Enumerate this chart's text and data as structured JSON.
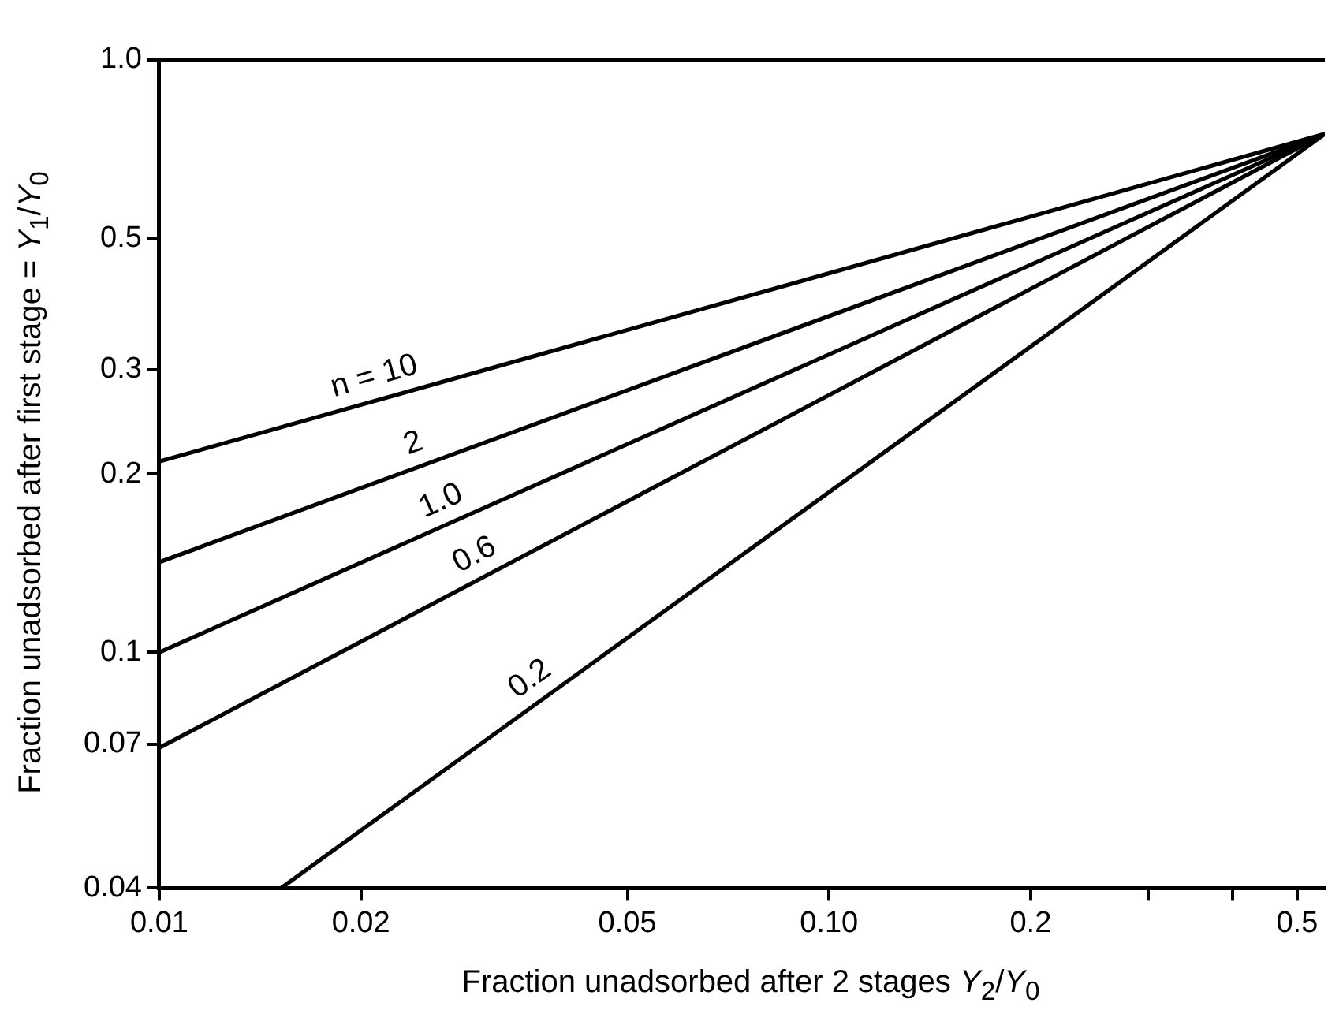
{
  "chart_data": {
    "type": "line",
    "xlabel": "Fraction unadsorbed after 2 stages Y$_{2}$/Y$_{0}$",
    "ylabel": "Fraction unadsorbed after first stage = Y$_{1}$/Y$_{0}$",
    "log": "xy",
    "grid": false,
    "legend": false,
    "marker": "none",
    "line_style": "solid",
    "xlim": [
      0.01,
      0.55
    ],
    "ylim": [
      0.04,
      1.0
    ],
    "xticks": [
      0.01,
      0.02,
      0.05,
      {
        "value": 0.1,
        "label": "0.10"
      },
      0.2,
      {
        "value": 0.3,
        "label": null
      },
      {
        "value": 0.4,
        "label": null
      },
      0.5
    ],
    "yticks": [
      0.04,
      0.07,
      0.1,
      0.2,
      0.3,
      0.5,
      {
        "value": 1.0,
        "label": "1.0"
      }
    ],
    "series": [
      {
        "color": "#000000",
        "x": [
          0.01,
          0.55
        ],
        "values": [
          0.21,
          0.75
        ]
      },
      {
        "color": "#000000",
        "x": [
          0.01,
          0.55
        ],
        "values": [
          0.142,
          0.75
        ]
      },
      {
        "color": "#000000",
        "x": [
          0.01,
          0.55
        ],
        "values": [
          0.1,
          0.75
        ]
      },
      {
        "color": "#000000",
        "x": [
          0.01,
          0.55
        ],
        "values": [
          0.069,
          0.75
        ]
      },
      {
        "color": "#000000",
        "x": [
          0.0152,
          0.55
        ],
        "values": [
          0.04,
          0.75
        ]
      }
    ],
    "annotations": [
      "n = 10",
      "2",
      "1.0",
      "0.6",
      "0.2"
    ]
  }
}
